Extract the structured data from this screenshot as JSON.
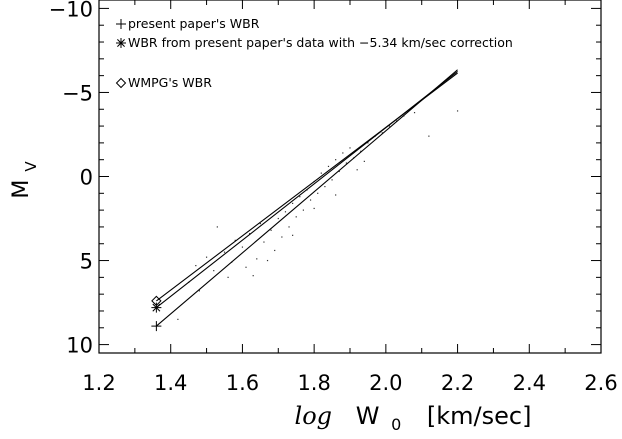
{
  "chart_data": {
    "type": "scatter",
    "xlim": [
      1.2,
      2.6
    ],
    "ylim": [
      10.5,
      -10.5
    ],
    "y_inverted": true,
    "x_ticks": [
      "1.2",
      "1.4",
      "1.6",
      "1.8",
      "2.0",
      "2.2",
      "2.4",
      "2.6"
    ],
    "x_tick_values": [
      1.2,
      1.4,
      1.6,
      1.8,
      2.0,
      2.2,
      2.4,
      2.6
    ],
    "y_ticks": [
      "−10",
      "−5",
      "0",
      "5",
      "10"
    ],
    "y_tick_values": [
      -10,
      -5,
      0,
      5,
      10
    ],
    "xlabel": {
      "italic": "log",
      "main": "W",
      "subscript": "0",
      "units": "[km/sec]"
    },
    "ylabel": {
      "main": "M",
      "subscript": "V"
    },
    "grid": false,
    "legend_position": "top-left",
    "legend": [
      {
        "marker": "plus",
        "label": "present paper's WBR"
      },
      {
        "marker": "asterisk",
        "label": "WBR from present paper's data with −5.34 km/sec correction"
      },
      {
        "marker": "diamond",
        "label": "WMPG's WBR"
      }
    ],
    "series": [
      {
        "marker": "plus",
        "line": {
          "x": [
            1.36,
            2.2
          ],
          "y": [
            8.9,
            -6.35
          ]
        }
      },
      {
        "marker": "asterisk",
        "line": {
          "x": [
            1.36,
            2.2
          ],
          "y": [
            7.8,
            -6.25
          ]
        }
      },
      {
        "marker": "diamond",
        "line": {
          "x": [
            1.36,
            2.2
          ],
          "y": [
            7.4,
            -6.15
          ]
        }
      }
    ],
    "scatter_points": [
      {
        "x": 1.5,
        "y": 4.8
      },
      {
        "x": 1.52,
        "y": 5.6
      },
      {
        "x": 1.53,
        "y": 3.0
      },
      {
        "x": 1.55,
        "y": 4.5
      },
      {
        "x": 1.57,
        "y": 5.1
      },
      {
        "x": 1.58,
        "y": 3.8
      },
      {
        "x": 1.6,
        "y": 4.2
      },
      {
        "x": 1.61,
        "y": 5.4
      },
      {
        "x": 1.62,
        "y": 3.4
      },
      {
        "x": 1.64,
        "y": 4.9
      },
      {
        "x": 1.65,
        "y": 2.8
      },
      {
        "x": 1.66,
        "y": 3.9
      },
      {
        "x": 1.68,
        "y": 3.2
      },
      {
        "x": 1.69,
        "y": 4.4
      },
      {
        "x": 1.7,
        "y": 2.5
      },
      {
        "x": 1.71,
        "y": 3.6
      },
      {
        "x": 1.72,
        "y": 2.1
      },
      {
        "x": 1.73,
        "y": 3.0
      },
      {
        "x": 1.74,
        "y": 1.6
      },
      {
        "x": 1.75,
        "y": 2.4
      },
      {
        "x": 1.76,
        "y": 1.2
      },
      {
        "x": 1.77,
        "y": 2.0
      },
      {
        "x": 1.78,
        "y": 0.8
      },
      {
        "x": 1.79,
        "y": 1.4
      },
      {
        "x": 1.8,
        "y": 0.3
      },
      {
        "x": 1.81,
        "y": 1.0
      },
      {
        "x": 1.82,
        "y": -0.2
      },
      {
        "x": 1.83,
        "y": 0.6
      },
      {
        "x": 1.84,
        "y": -0.6
      },
      {
        "x": 1.85,
        "y": 0.2
      },
      {
        "x": 1.86,
        "y": -1.0
      },
      {
        "x": 1.87,
        "y": -0.3
      },
      {
        "x": 1.88,
        "y": -1.4
      },
      {
        "x": 1.89,
        "y": -0.8
      },
      {
        "x": 1.9,
        "y": -1.7
      },
      {
        "x": 1.91,
        "y": -1.1
      },
      {
        "x": 1.92,
        "y": -0.4
      },
      {
        "x": 1.93,
        "y": -1.5
      },
      {
        "x": 1.95,
        "y": -2.0
      },
      {
        "x": 1.97,
        "y": -2.4
      },
      {
        "x": 1.99,
        "y": -2.6
      },
      {
        "x": 2.01,
        "y": -3.0
      },
      {
        "x": 2.03,
        "y": -3.3
      },
      {
        "x": 2.05,
        "y": -3.6
      },
      {
        "x": 2.08,
        "y": -3.8
      },
      {
        "x": 2.12,
        "y": -2.4
      },
      {
        "x": 2.2,
        "y": -3.9
      },
      {
        "x": 1.45,
        "y": 6.3
      },
      {
        "x": 1.47,
        "y": 5.3
      },
      {
        "x": 1.48,
        "y": 6.8
      },
      {
        "x": 1.42,
        "y": 8.5
      },
      {
        "x": 1.56,
        "y": 6.0
      },
      {
        "x": 1.63,
        "y": 5.9
      },
      {
        "x": 1.67,
        "y": 5.0
      },
      {
        "x": 1.74,
        "y": 3.5
      },
      {
        "x": 1.8,
        "y": 1.9
      },
      {
        "x": 1.86,
        "y": 1.1
      },
      {
        "x": 1.94,
        "y": -0.9
      }
    ]
  }
}
